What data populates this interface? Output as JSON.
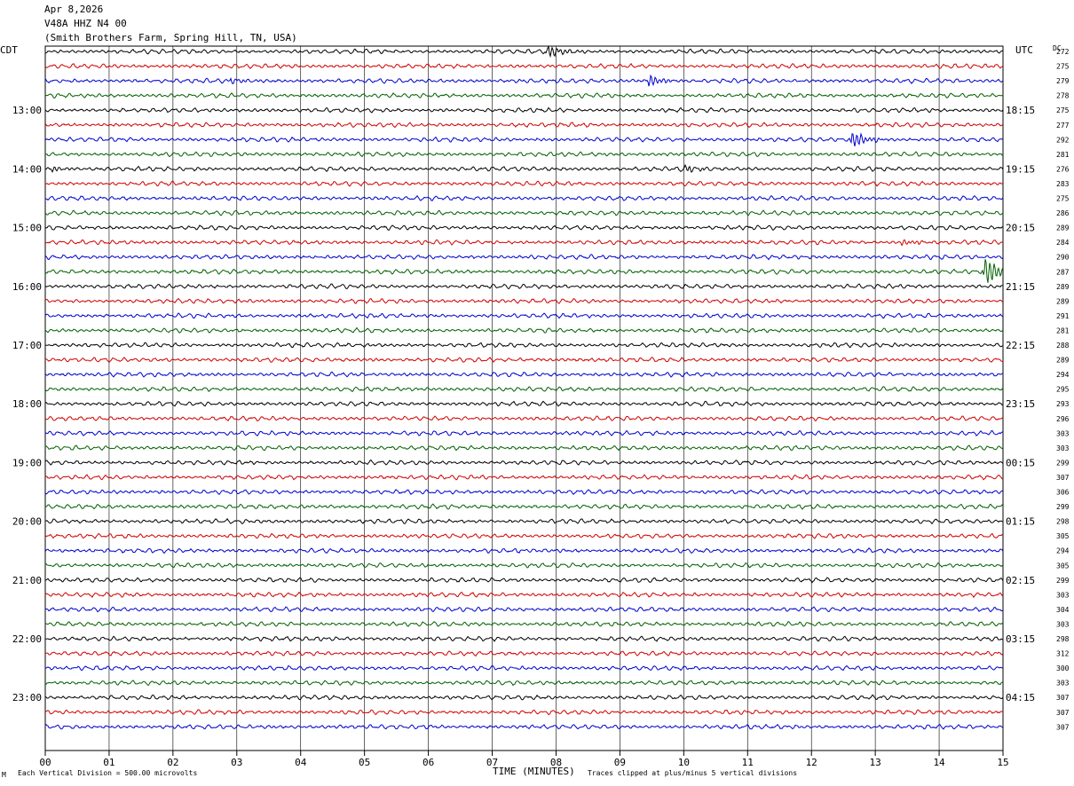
{
  "header": {
    "date": "Apr 8,2026",
    "station": "V48A HHZ N4 00",
    "location": "(Smith Brothers Farm, Spring Hill, TN, USA)"
  },
  "left_zone_label": "CDT",
  "right_zone_label": "UTC",
  "dc_header": "DC",
  "footer": {
    "scale_note": "Each Vertical Division =  500.00 microvolts",
    "clip_note": "Traces clipped at plus/minus 5 vertical divisions",
    "corner_mark": "M"
  },
  "colors": {
    "trace_cycle": [
      "#000000",
      "#d00000",
      "#0000d0",
      "#006000"
    ],
    "grid": "#000000"
  },
  "chart_data": {
    "type": "line",
    "title": "",
    "xlabel": "TIME (MINUTES)",
    "ylabel": "",
    "x_range": [
      0,
      15
    ],
    "x_ticks": [
      "00",
      "01",
      "02",
      "03",
      "04",
      "05",
      "06",
      "07",
      "08",
      "09",
      "10",
      "11",
      "12",
      "13",
      "14",
      "15"
    ],
    "rows_per_hour": 4,
    "left_hour_labels": [
      "13:00",
      "14:00",
      "15:00",
      "16:00",
      "17:00",
      "18:00",
      "19:00",
      "20:00",
      "21:00",
      "22:00",
      "23:00"
    ],
    "right_hour_labels": [
      "18:15",
      "19:15",
      "20:15",
      "21:15",
      "22:15",
      "23:15",
      "00:15",
      "01:15",
      "02:15",
      "03:15",
      "04:15"
    ],
    "dc_offsets": [
      "272",
      "275",
      "279",
      "278",
      "275",
      "277",
      "292",
      "281",
      "276",
      "283",
      "275",
      "286",
      "289",
      "284",
      "290",
      "287",
      "289",
      "289",
      "291",
      "281",
      "288",
      "289",
      "294",
      "295",
      "293",
      "296",
      "303",
      "303",
      "299",
      "307",
      "306",
      "299",
      "298",
      "305",
      "294",
      "305",
      "299",
      "303",
      "304",
      "303",
      "298",
      "312",
      "300",
      "303",
      "307",
      "307",
      "307"
    ],
    "events": [
      {
        "row": 0,
        "minute": 7.87,
        "amp": 2.2
      },
      {
        "row": 2,
        "minute": 9.45,
        "amp": 1.9
      },
      {
        "row": 2,
        "minute": 2.9,
        "amp": 0.8
      },
      {
        "row": 6,
        "minute": 12.62,
        "amp": 3.0
      },
      {
        "row": 8,
        "minute": 10.0,
        "amp": 1.2
      },
      {
        "row": 8,
        "minute": 0.1,
        "amp": 0.9
      },
      {
        "row": 13,
        "minute": 13.4,
        "amp": 0.9
      },
      {
        "row": 15,
        "minute": 14.72,
        "amp": 5.0
      }
    ]
  }
}
